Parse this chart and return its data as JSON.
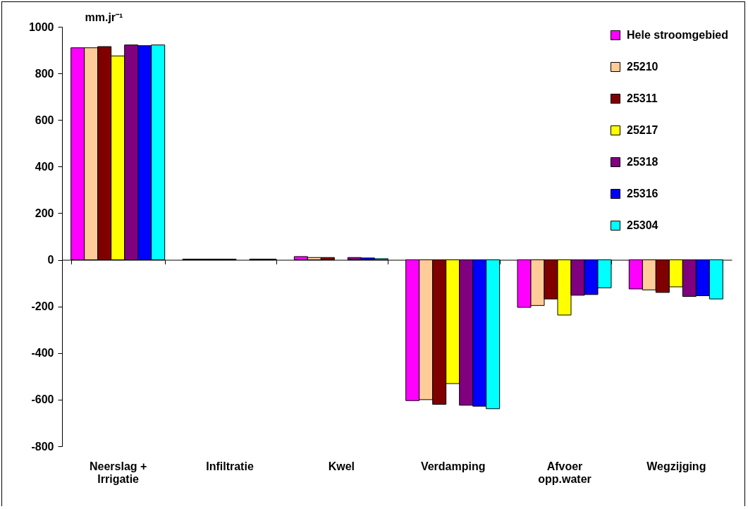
{
  "chart_data": {
    "type": "bar",
    "ylabel": "mm.jr⁻¹",
    "categories": [
      "Neerslag + Irrigatie",
      "Infiltratie",
      "Kwel",
      "Verdamping",
      "Afvoer opp.water",
      "Wegzijging"
    ],
    "series": [
      {
        "name": "Hele stroomgebied",
        "color": "#ff00ff",
        "values": [
          910,
          3,
          14,
          -604,
          -204,
          -125
        ]
      },
      {
        "name": "25210",
        "color": "#ffcc99",
        "values": [
          910,
          3,
          10,
          -600,
          -196,
          -129
        ]
      },
      {
        "name": "25311",
        "color": "#800000",
        "values": [
          915,
          3,
          10,
          -620,
          -168,
          -140
        ]
      },
      {
        "name": "25217",
        "color": "#ffff00",
        "values": [
          875,
          3,
          null,
          -531,
          -237,
          -116
        ]
      },
      {
        "name": "25318",
        "color": "#800080",
        "values": [
          922,
          null,
          10,
          -624,
          -152,
          -157
        ]
      },
      {
        "name": "25316",
        "color": "#0000ff",
        "values": [
          919,
          3,
          8,
          -628,
          -149,
          -154
        ]
      },
      {
        "name": "25304",
        "color": "#00ffff",
        "values": [
          922,
          3,
          5,
          -639,
          -120,
          -168
        ]
      }
    ],
    "ylim": [
      -800,
      1000
    ],
    "yticks": [
      -800,
      -600,
      -400,
      -200,
      0,
      200,
      400,
      600,
      800,
      1000
    ],
    "legend": "top right"
  }
}
